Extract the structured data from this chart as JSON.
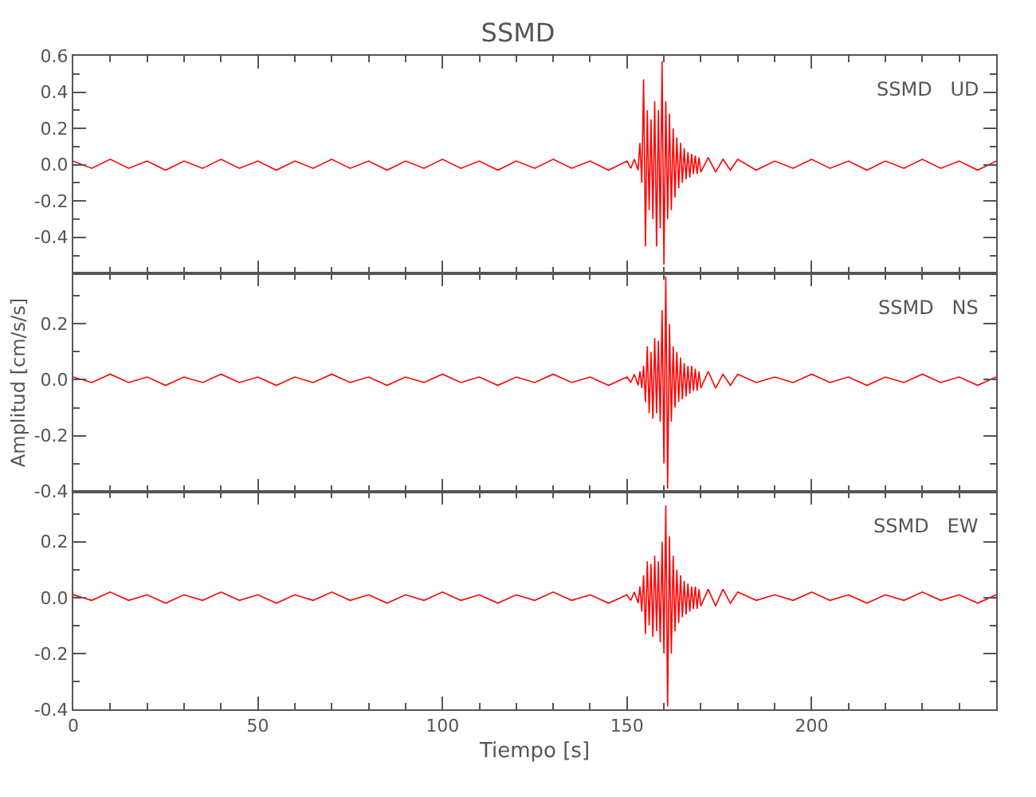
{
  "chart_data": [
    {
      "type": "line",
      "title": "SSMD",
      "annotations": [
        "SSMD   UD"
      ],
      "tick_labels": "y",
      "xlim": [
        0,
        250
      ],
      "ylim": [
        -0.6,
        0.6
      ],
      "yticks": [
        {
          "value": -0.4,
          "label": "-0.4"
        },
        {
          "value": -0.2,
          "label": "-0.2"
        },
        {
          "value": 0,
          "label": "0.0"
        },
        {
          "value": 0.2,
          "label": "0.2"
        },
        {
          "value": 0.4,
          "label": "0.4"
        },
        {
          "value": 0.6,
          "label": "0.6"
        }
      ],
      "x": [
        0,
        5,
        10,
        15,
        20,
        25,
        30,
        35,
        40,
        45,
        50,
        55,
        60,
        65,
        70,
        75,
        80,
        85,
        90,
        95,
        100,
        105,
        110,
        115,
        120,
        125,
        130,
        135,
        140,
        145,
        150,
        151,
        152,
        153,
        153.5,
        154,
        154.5,
        155,
        155.5,
        156,
        156.5,
        157,
        157.5,
        158,
        158.5,
        159,
        159.5,
        160,
        160.5,
        161,
        161.5,
        162,
        162.5,
        163,
        163.5,
        164,
        164.5,
        165,
        165.5,
        166,
        166.5,
        167,
        167.5,
        168,
        168.5,
        169,
        169.5,
        170,
        172,
        174,
        176,
        178,
        180,
        185,
        190,
        195,
        200,
        205,
        210,
        215,
        220,
        225,
        230,
        235,
        240,
        245,
        250
      ],
      "series": [
        {
          "color": "#ff0000",
          "values": [
            0.02,
            -0.02,
            0.03,
            -0.02,
            0.02,
            -0.03,
            0.02,
            -0.02,
            0.03,
            -0.02,
            0.02,
            -0.03,
            0.02,
            -0.02,
            0.03,
            -0.02,
            0.02,
            -0.03,
            0.02,
            -0.02,
            0.03,
            -0.02,
            0.02,
            -0.03,
            0.02,
            -0.02,
            0.03,
            -0.02,
            0.02,
            -0.03,
            0.02,
            -0.02,
            0.03,
            -0.03,
            0.12,
            -0.1,
            0.47,
            -0.45,
            0.3,
            -0.25,
            0.25,
            -0.3,
            0.35,
            -0.45,
            0.3,
            -0.35,
            0.57,
            -0.55,
            0.35,
            -0.3,
            0.28,
            -0.25,
            0.2,
            -0.18,
            0.15,
            -0.13,
            0.12,
            -0.1,
            0.09,
            -0.08,
            0.07,
            -0.07,
            0.06,
            -0.05,
            0.05,
            -0.05,
            0.04,
            -0.04,
            0.04,
            -0.04,
            0.03,
            -0.03,
            0.03,
            -0.03,
            0.02,
            -0.02,
            0.03,
            -0.02,
            0.02,
            -0.03,
            0.02,
            -0.02,
            0.03,
            -0.02,
            0.02,
            -0.03,
            0.02
          ]
        }
      ]
    },
    {
      "type": "line",
      "ylabel": "Amplitud [cm/s/s]",
      "annotations": [
        "SSMD   NS"
      ],
      "tick_labels": "y",
      "xlim": [
        0,
        250
      ],
      "ylim": [
        -0.4,
        0.38
      ],
      "yticks": [
        {
          "value": -0.4,
          "label": "-0.4"
        },
        {
          "value": -0.2,
          "label": "-0.2"
        },
        {
          "value": 0,
          "label": "0.0"
        },
        {
          "value": 0.2,
          "label": "0.2"
        }
      ],
      "x": [
        0,
        5,
        10,
        15,
        20,
        25,
        30,
        35,
        40,
        45,
        50,
        55,
        60,
        65,
        70,
        75,
        80,
        85,
        90,
        95,
        100,
        105,
        110,
        115,
        120,
        125,
        130,
        135,
        140,
        145,
        150,
        151,
        152,
        153,
        153.5,
        154,
        154.5,
        155,
        155.5,
        156,
        156.5,
        157,
        157.5,
        158,
        158.5,
        159,
        159.5,
        160,
        160.5,
        161,
        161.5,
        162,
        162.5,
        163,
        163.5,
        164,
        164.5,
        165,
        165.5,
        166,
        166.5,
        167,
        167.5,
        168,
        168.5,
        169,
        169.5,
        170,
        172,
        174,
        176,
        178,
        180,
        185,
        190,
        195,
        200,
        205,
        210,
        215,
        220,
        225,
        230,
        235,
        240,
        245,
        250
      ],
      "series": [
        {
          "color": "#ff0000",
          "values": [
            0.01,
            -0.01,
            0.02,
            -0.01,
            0.01,
            -0.02,
            0.01,
            -0.01,
            0.02,
            -0.01,
            0.01,
            -0.02,
            0.01,
            -0.01,
            0.02,
            -0.01,
            0.01,
            -0.02,
            0.01,
            -0.01,
            0.02,
            -0.01,
            0.01,
            -0.02,
            0.01,
            -0.01,
            0.02,
            -0.01,
            0.01,
            -0.02,
            0.01,
            -0.01,
            0.02,
            -0.02,
            0.03,
            -0.03,
            0.05,
            -0.08,
            0.12,
            -0.12,
            0.1,
            -0.14,
            0.15,
            -0.12,
            0.14,
            -0.15,
            0.25,
            -0.3,
            0.37,
            -0.39,
            0.2,
            -0.15,
            0.12,
            -0.1,
            0.1,
            -0.08,
            0.08,
            -0.07,
            0.06,
            -0.06,
            0.05,
            -0.05,
            0.05,
            -0.04,
            0.04,
            -0.04,
            0.03,
            -0.03,
            0.03,
            -0.03,
            0.02,
            -0.02,
            0.02,
            -0.01,
            0.01,
            -0.01,
            0.02,
            -0.01,
            0.01,
            -0.02,
            0.01,
            -0.01,
            0.02,
            -0.01,
            0.01,
            -0.02,
            0.01
          ]
        }
      ]
    },
    {
      "type": "line",
      "xlabel": "Tiempo [s]",
      "annotations": [
        "SSMD   EW"
      ],
      "xlim": [
        0,
        250
      ],
      "xticks": [
        0,
        50,
        100,
        150,
        200
      ],
      "ylim": [
        -0.4,
        0.38
      ],
      "yticks": [
        {
          "value": -0.4,
          "label": "-0.4"
        },
        {
          "value": -0.2,
          "label": "-0.2"
        },
        {
          "value": 0,
          "label": "0.0"
        },
        {
          "value": 0.2,
          "label": "0.2"
        }
      ],
      "x": [
        0,
        5,
        10,
        15,
        20,
        25,
        30,
        35,
        40,
        45,
        50,
        55,
        60,
        65,
        70,
        75,
        80,
        85,
        90,
        95,
        100,
        105,
        110,
        115,
        120,
        125,
        130,
        135,
        140,
        145,
        150,
        151,
        152,
        153,
        153.5,
        154,
        154.5,
        155,
        155.5,
        156,
        156.5,
        157,
        157.5,
        158,
        158.5,
        159,
        159.5,
        160,
        160.5,
        161,
        161.5,
        162,
        162.5,
        163,
        163.5,
        164,
        164.5,
        165,
        165.5,
        166,
        166.5,
        167,
        167.5,
        168,
        168.5,
        169,
        169.5,
        170,
        172,
        174,
        176,
        178,
        180,
        185,
        190,
        195,
        200,
        205,
        210,
        215,
        220,
        225,
        230,
        235,
        240,
        245,
        250
      ],
      "series": [
        {
          "color": "#ff0000",
          "values": [
            0.01,
            -0.01,
            0.02,
            -0.01,
            0.01,
            -0.02,
            0.01,
            -0.01,
            0.02,
            -0.01,
            0.01,
            -0.02,
            0.01,
            -0.01,
            0.02,
            -0.01,
            0.01,
            -0.02,
            0.01,
            -0.01,
            0.02,
            -0.01,
            0.01,
            -0.02,
            0.01,
            -0.01,
            0.02,
            -0.01,
            0.01,
            -0.02,
            0.01,
            -0.01,
            0.02,
            -0.02,
            0.04,
            -0.05,
            0.08,
            -0.13,
            0.13,
            -0.1,
            0.12,
            -0.14,
            0.15,
            -0.12,
            0.13,
            -0.16,
            0.2,
            -0.2,
            0.33,
            -0.39,
            0.22,
            -0.2,
            0.15,
            -0.12,
            0.1,
            -0.09,
            0.08,
            -0.07,
            0.06,
            -0.06,
            0.05,
            -0.05,
            0.04,
            -0.04,
            0.04,
            -0.04,
            0.03,
            -0.03,
            0.03,
            -0.03,
            0.03,
            -0.02,
            0.02,
            -0.01,
            0.01,
            -0.01,
            0.02,
            -0.01,
            0.01,
            -0.02,
            0.01,
            -0.01,
            0.02,
            -0.01,
            0.01,
            -0.02,
            0.01
          ]
        }
      ]
    }
  ]
}
